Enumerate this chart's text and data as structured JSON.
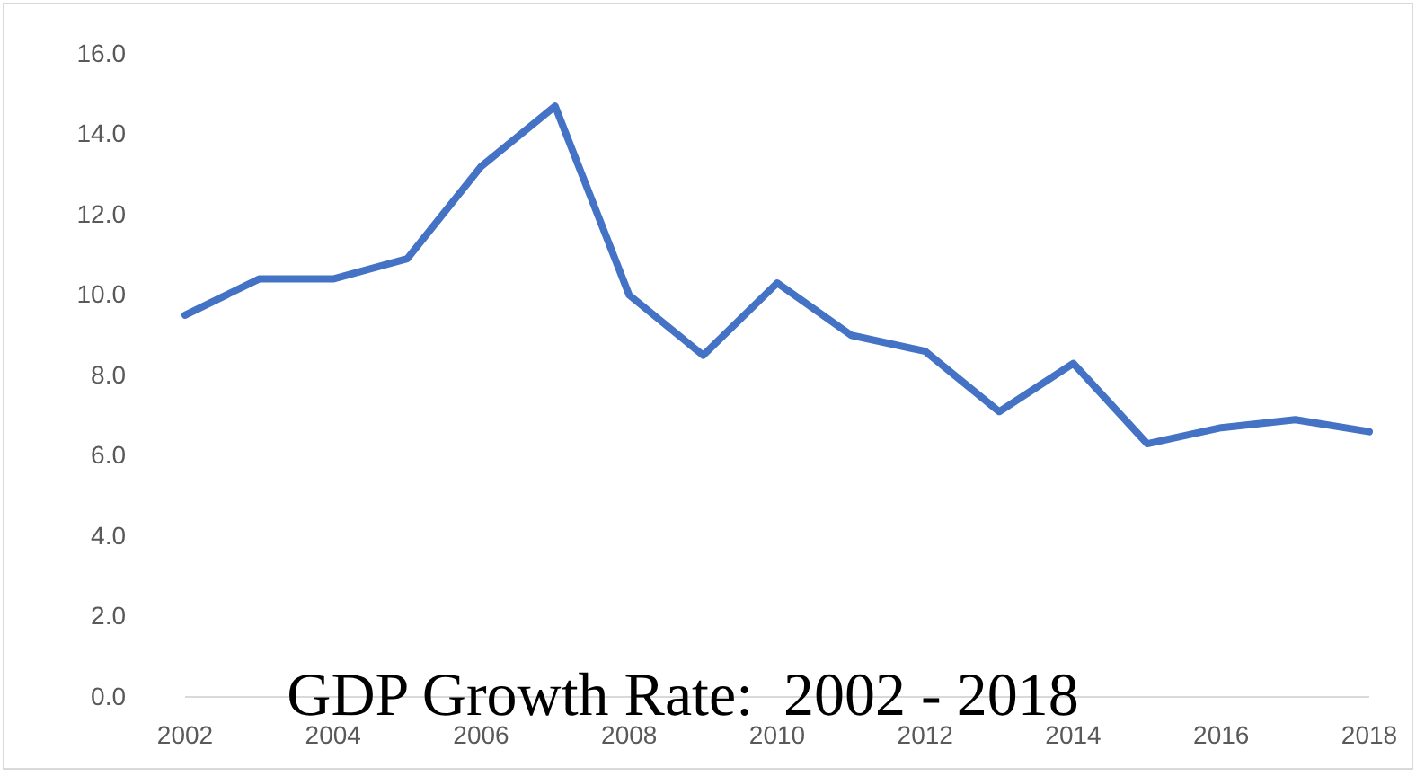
{
  "chart_data": {
    "type": "line",
    "title": "GDP Growth Rate:  2002 - 2018",
    "x": [
      2002,
      2003,
      2004,
      2005,
      2006,
      2007,
      2008,
      2009,
      2010,
      2011,
      2012,
      2013,
      2014,
      2015,
      2016,
      2017,
      2018
    ],
    "series": [
      {
        "color": "#4472c4",
        "values": [
          9.5,
          10.4,
          10.4,
          10.9,
          13.2,
          14.7,
          10.0,
          8.5,
          10.3,
          9.0,
          8.6,
          7.1,
          8.3,
          6.3,
          6.7,
          6.9,
          6.6
        ]
      }
    ],
    "xlim": [
      2002,
      2018
    ],
    "xticks": [
      2002,
      2004,
      2006,
      2008,
      2010,
      2012,
      2014,
      2016,
      2018
    ],
    "ylim": [
      0,
      16
    ],
    "yticks": [
      {
        "value": 0,
        "label": "0.0"
      },
      {
        "value": 2,
        "label": "2.0"
      },
      {
        "value": 4,
        "label": "4.0"
      },
      {
        "value": 6,
        "label": "6.0"
      },
      {
        "value": 8,
        "label": "8.0"
      },
      {
        "value": 10,
        "label": "10.0"
      },
      {
        "value": 12,
        "label": "12.0"
      },
      {
        "value": 14,
        "label": "14.0"
      },
      {
        "value": 16,
        "label": "16.0"
      }
    ],
    "grid": false,
    "marker": "none",
    "line_style": "solid"
  }
}
